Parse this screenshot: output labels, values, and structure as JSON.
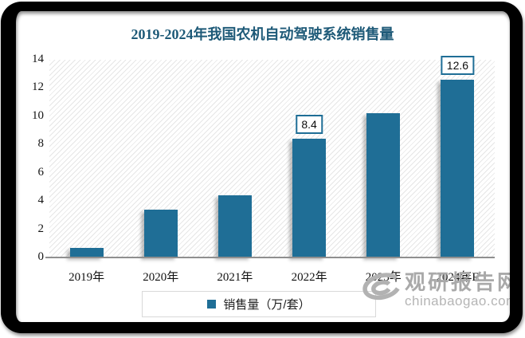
{
  "window": {
    "background": "#ffffff",
    "frame_color": "#000000"
  },
  "chart_data": {
    "type": "bar",
    "title": "2019-2024年我国农机自动驾驶系统销售量",
    "title_color": "#1E5A78",
    "categories": [
      "2019年",
      "2020年",
      "2021年",
      "2022年",
      "2023年",
      "2024年E"
    ],
    "values": [
      0.7,
      3.4,
      4.4,
      8.4,
      10.2,
      12.6
    ],
    "bar_labels": [
      "",
      "",
      "",
      "8.4",
      "",
      "12.6"
    ],
    "legend": [
      "销售量（万/套）"
    ],
    "legend_position": "bottom",
    "bar_color": "#1F6E96",
    "label_box_border_color": "#1F6E96",
    "ylim": [
      0,
      14
    ],
    "yticks": [
      0,
      2,
      4,
      6,
      8,
      10,
      12,
      14
    ],
    "grid": false,
    "plot_background": "diagonal-hatch"
  },
  "watermark": {
    "logo": "swirl-logo",
    "name": "观研报告网",
    "url": "chinabaogao.com"
  }
}
